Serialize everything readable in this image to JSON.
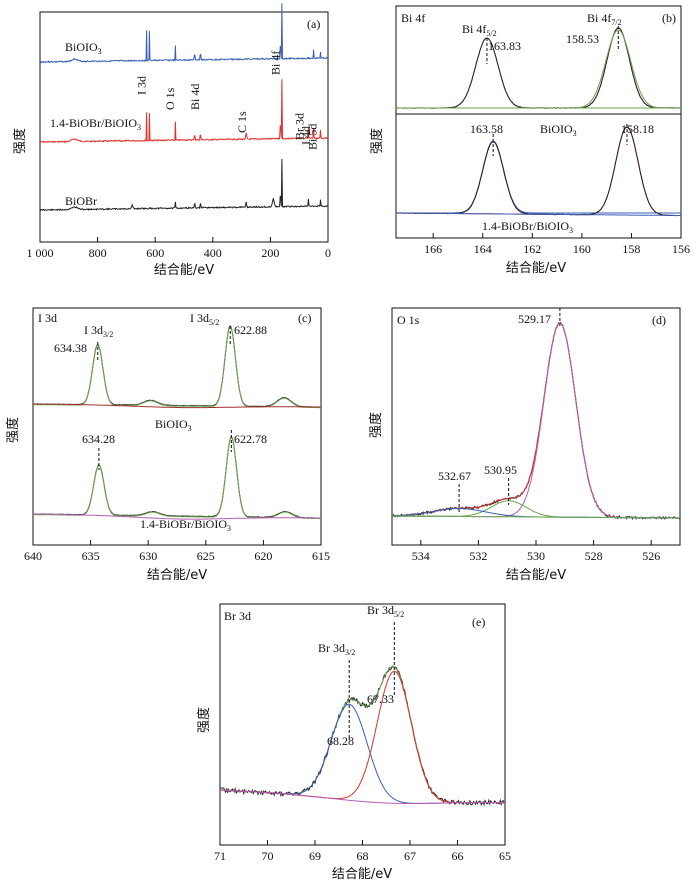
{
  "chart_data": [
    {
      "panel": "(a)",
      "type": "line",
      "xlabel": "结合能/eV",
      "ylabel": "强度",
      "xlim": [
        1000,
        0
      ],
      "xticks": [
        "1 000",
        "800",
        "600",
        "400",
        "200",
        "0"
      ],
      "xtick_values": [
        1000,
        800,
        600,
        400,
        200,
        0
      ],
      "colors": {
        "BiOIO3": "#3a5fb8",
        "1.4-BiOBr/BiOIO3": "#e0312b",
        "BiOBr": "#222222"
      },
      "series_labels": [
        {
          "text": "BiOIO",
          "sub": "3"
        },
        {
          "text": "1.4-BiOBr/BiOIO",
          "sub": "3"
        },
        {
          "text": "BiOBr",
          "sub": ""
        }
      ],
      "peak_labels": [
        "I 3d",
        "O 1s",
        "Bi 4d",
        "C 1s",
        "Bi 4f",
        "Br 3d",
        "I 4d",
        "Bi 5d"
      ],
      "peaks_eV": [
        630,
        530,
        443,
        284,
        160,
        68,
        49,
        26
      ]
    },
    {
      "panel": "(b)",
      "type": "line",
      "title": "Bi 4f",
      "xlabel": "结合能/eV",
      "ylabel": "强度",
      "xlim": [
        167.5,
        156
      ],
      "xticks": [
        "166",
        "164",
        "162",
        "160",
        "158",
        "156"
      ],
      "xtick_values": [
        166,
        164,
        162,
        160,
        158,
        156
      ],
      "upper": {
        "sample": "BiOIO",
        "sample_sub": "3",
        "peaks": [
          163.83,
          158.53
        ]
      },
      "lower": {
        "sample": "1.4-BiOBr/BiOIO",
        "sample_sub": "3",
        "peaks": [
          163.58,
          158.18
        ]
      },
      "peak_names": [
        {
          "text": "Bi 4f",
          "sub": "5/2"
        },
        {
          "text": "Bi 4f",
          "sub": "7/2"
        }
      ],
      "values": [
        "163.83",
        "158.53",
        "163.58",
        "158.18"
      ],
      "sample_label_b": "BiOIO"
    },
    {
      "panel": "(c)",
      "type": "line",
      "title": "I 3d",
      "xlabel": "结合能/eV",
      "ylabel": "强度",
      "xlim": [
        640,
        615
      ],
      "xticks": [
        "640",
        "635",
        "630",
        "625",
        "620",
        "615"
      ],
      "xtick_values": [
        640,
        635,
        630,
        625,
        620,
        615
      ],
      "upper": {
        "sample": "BiOIO",
        "sample_sub": "3",
        "peaks": [
          634.38,
          622.88
        ]
      },
      "lower": {
        "sample": "1.4-BiOBr/BiOIO",
        "sample_sub": "3",
        "peaks": [
          634.28,
          622.78
        ]
      },
      "peak_names": [
        {
          "text": "I 3d",
          "sub": "3/2"
        },
        {
          "text": "I 3d",
          "sub": "5/2"
        }
      ],
      "values": [
        "634.38",
        "622.88",
        "634.28",
        "622.78"
      ]
    },
    {
      "panel": "(d)",
      "type": "line",
      "title": "O 1s",
      "xlabel": "结合能/eV",
      "ylabel": "强度",
      "xlim": [
        535,
        525
      ],
      "xticks": [
        "534",
        "532",
        "530",
        "528",
        "526"
      ],
      "xtick_values": [
        534,
        532,
        530,
        528,
        526
      ],
      "peaks": [
        532.67,
        530.95,
        529.17
      ],
      "values": [
        "532.67",
        "530.95",
        "529.17"
      ]
    },
    {
      "panel": "(e)",
      "type": "line",
      "title": "Br 3d",
      "xlabel": "结合能/eV",
      "ylabel": "强度",
      "xlim": [
        71,
        65
      ],
      "xticks": [
        "71",
        "70",
        "69",
        "68",
        "67",
        "66",
        "65"
      ],
      "xtick_values": [
        71,
        70,
        69,
        68,
        67,
        66,
        65
      ],
      "peaks": [
        68.28,
        67.33
      ],
      "peak_names": [
        {
          "text": "Br 3d",
          "sub": "3/2"
        },
        {
          "text": "Br 3d",
          "sub": "5/2"
        }
      ],
      "values": [
        "68.28",
        "67.33"
      ]
    }
  ]
}
